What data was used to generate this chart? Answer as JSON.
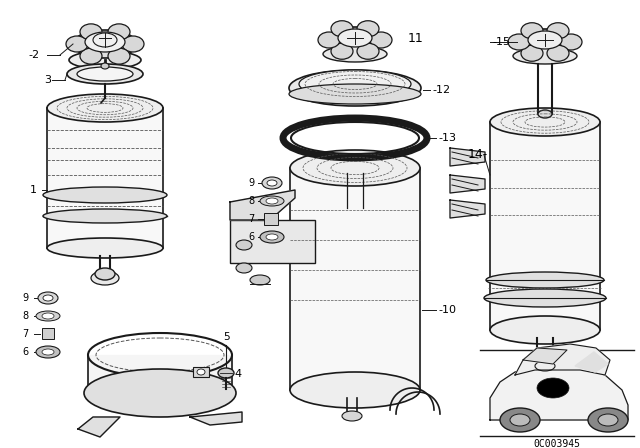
{
  "bg_color": "#ffffff",
  "line_color": "#1a1a1a",
  "dash_color": "#555555",
  "part_number_code": "0C003945",
  "figsize": [
    6.4,
    4.48
  ],
  "dpi": 100
}
